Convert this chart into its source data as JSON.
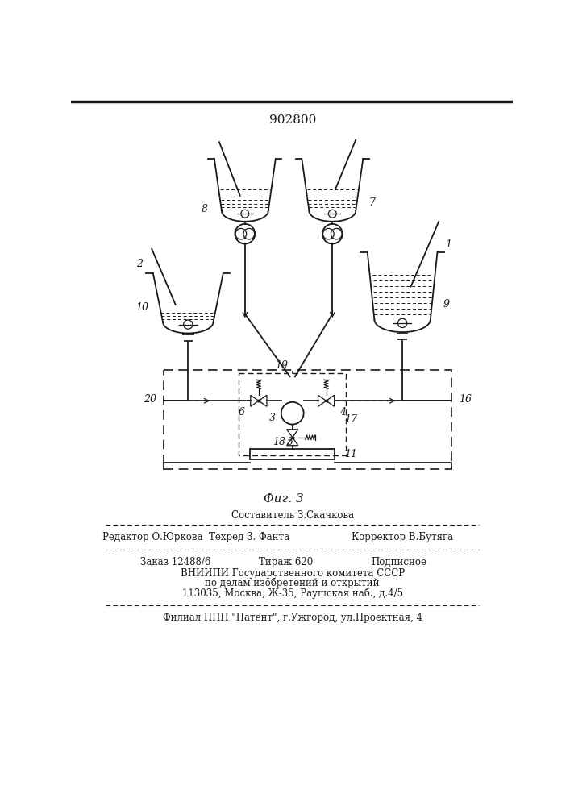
{
  "patent_number": "902800",
  "fig_label": "Фиг. 3",
  "background_color": "#ffffff",
  "line_color": "#1a1a1a",
  "lw_main": 1.3,
  "lw_thin": 0.9,
  "footer": {
    "line1": "Составитель З.Скачкова",
    "line2": "Редактор О.Юркова  Техред З. Фанта",
    "line2r": "Корректор В.Бутяга",
    "line3l": "Заказ 12488/6",
    "line3m": "Тираж 620",
    "line3r": "Подписное",
    "line4": "ВНИИПИ Государственного комитета СССР",
    "line5": "по делам изобретений и открытий",
    "line6": "113035, Москва, Ж-35, Раушская наб., д.4/5",
    "line7": "Филиал ППП \"Патент\", г.Ужгород, ул.Проектная, 4"
  }
}
